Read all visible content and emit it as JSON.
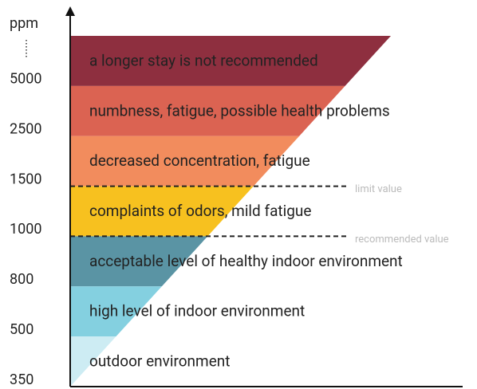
{
  "axis_unit": "ppm",
  "levels": [
    {
      "tick": "5000",
      "description": "a longer stay is not recommended",
      "color": "#8e2f3f"
    },
    {
      "tick": "2500",
      "description": "numbness, fatigue, possible health problems",
      "color": "#db6352"
    },
    {
      "tick": "1500",
      "description": "decreased concentration, fatigue",
      "color": "#f28c5d"
    },
    {
      "tick": "1000",
      "description": "complaints of odors, mild fatigue",
      "color": "#f7c11f"
    },
    {
      "tick": "800",
      "description": "acceptable level of healthy indoor environment",
      "color": "#5a94a4"
    },
    {
      "tick": "500",
      "description": "high level of indoor environment",
      "color": "#84d0e0"
    },
    {
      "tick": "350",
      "description": "outdoor environment",
      "color": "#cdecf3"
    }
  ],
  "thresholds": [
    {
      "label": "limit value",
      "below_level": 2
    },
    {
      "label": "recommended value",
      "below_level": 3
    }
  ]
}
